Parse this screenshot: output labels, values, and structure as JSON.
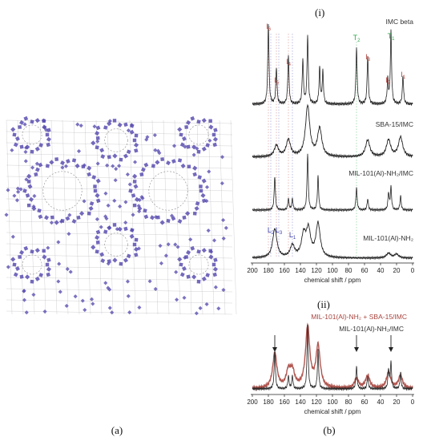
{
  "labels": {
    "panel_i": "(i)",
    "panel_ii": "(ii)",
    "panel_a": "(a)",
    "panel_b": "(b)"
  },
  "colors": {
    "I_label": "#b5413a",
    "T_label": "#2fa84f",
    "L_label": "#3b3fa8",
    "overlay_red": "#a8453e",
    "trace": "#222222",
    "mof_node": "#5a4fb0",
    "mof_linker": "#8a8a8a"
  },
  "chart_data": [
    {
      "type": "line",
      "title": "(i)",
      "xlabel": "chemical shift / ppm",
      "xlim": [
        200,
        0
      ],
      "xreversed": true,
      "xticks": [
        200,
        180,
        160,
        140,
        120,
        100,
        80,
        60,
        40,
        20,
        0
      ],
      "series": [
        {
          "name": "IMC beta",
          "peaks": [
            [
              180,
              1.0
            ],
            [
              170,
              0.45
            ],
            [
              155,
              0.6
            ],
            [
              137,
              0.55
            ],
            [
              131,
              0.85
            ],
            [
              116,
              0.45
            ],
            [
              112,
              0.4
            ],
            [
              70,
              0.7
            ],
            [
              56,
              0.6
            ],
            [
              31,
              0.3
            ],
            [
              27,
              0.9
            ],
            [
              12,
              0.35
            ]
          ]
        },
        {
          "name": "SBA-15/IMC",
          "peaks": [
            [
              170,
              0.2
            ],
            [
              155,
              0.3
            ],
            [
              131,
              0.9
            ],
            [
              116,
              0.5
            ],
            [
              56,
              0.3
            ],
            [
              30,
              0.3
            ],
            [
              15,
              0.35
            ]
          ]
        },
        {
          "name": "MIL-101(Al)-NH2/IMC",
          "peaks": [
            [
              172,
              0.6
            ],
            [
              155,
              0.2
            ],
            [
              150,
              0.2
            ],
            [
              131,
              1.0
            ],
            [
              118,
              0.6
            ],
            [
              70,
              0.4
            ],
            [
              56,
              0.2
            ],
            [
              30,
              0.3
            ],
            [
              27,
              0.4
            ],
            [
              15,
              0.25
            ]
          ]
        },
        {
          "name": "MIL-101(Al)-NH2",
          "peaks": [
            [
              172,
              0.6
            ],
            [
              150,
              0.25
            ],
            [
              136,
              0.45
            ],
            [
              130,
              0.55
            ],
            [
              118,
              0.7
            ],
            [
              30,
              0.1
            ],
            [
              20,
              0.08
            ]
          ]
        }
      ],
      "peak_labels": [
        {
          "text": "I",
          "sub": "6",
          "ppm": 180,
          "group": "I"
        },
        {
          "text": "I",
          "sub": "5",
          "ppm": 170,
          "group": "I"
        },
        {
          "text": "I",
          "sub": "4",
          "ppm": 155,
          "group": "I"
        },
        {
          "text": "T",
          "sub": "2",
          "ppm": 70,
          "group": "T"
        },
        {
          "text": "I",
          "sub": "3",
          "ppm": 56,
          "group": "I"
        },
        {
          "text": "T",
          "sub": "1",
          "ppm": 27,
          "group": "T"
        },
        {
          "text": "I",
          "sub": "2",
          "ppm": 31,
          "group": "I"
        },
        {
          "text": "I",
          "sub": "1",
          "ppm": 12,
          "group": "I"
        },
        {
          "text": "L",
          "sub": "2",
          "ppm": 177,
          "group": "L"
        },
        {
          "text": "L",
          "sub": "3",
          "ppm": 167,
          "group": "L"
        },
        {
          "text": "L",
          "sub": "1",
          "ppm": 150,
          "group": "L"
        }
      ],
      "legend_labels": {
        "s0": "IMC beta",
        "s1": "SBA-15/IMC",
        "s2": "MIL-101(Al)-NH₂/IMC",
        "s3": "MIL-101(Al)-NH₂"
      }
    },
    {
      "type": "line",
      "title": "(ii)",
      "xlabel": "chemical shift / ppm",
      "xlim": [
        200,
        0
      ],
      "xreversed": true,
      "xticks": [
        200,
        180,
        160,
        140,
        120,
        100,
        80,
        60,
        40,
        20,
        0
      ],
      "series": [
        {
          "name": "MIL-101(Al)-NH₂ + SBA-15/IMC",
          "peaks": [
            [
              172,
              0.55
            ],
            [
              155,
              0.25
            ],
            [
              150,
              0.25
            ],
            [
              131,
              0.95
            ],
            [
              118,
              0.65
            ],
            [
              70,
              0.15
            ],
            [
              56,
              0.2
            ],
            [
              30,
              0.25
            ],
            [
              15,
              0.2
            ]
          ]
        },
        {
          "name": "MIL-101(Al)-NH₂/IMC",
          "peaks": [
            [
              172,
              0.6
            ],
            [
              155,
              0.2
            ],
            [
              150,
              0.2
            ],
            [
              131,
              1.0
            ],
            [
              118,
              0.6
            ],
            [
              70,
              0.35
            ],
            [
              56,
              0.2
            ],
            [
              30,
              0.3
            ],
            [
              27,
              0.4
            ],
            [
              15,
              0.25
            ]
          ]
        }
      ],
      "arrows_ppm": [
        172,
        70,
        27
      ],
      "legend_labels": {
        "s0": "MIL-101(Al)-NH₂ + SBA-15/IMC",
        "s1": "MIL-101(Al)-NH₂/IMC"
      }
    }
  ]
}
